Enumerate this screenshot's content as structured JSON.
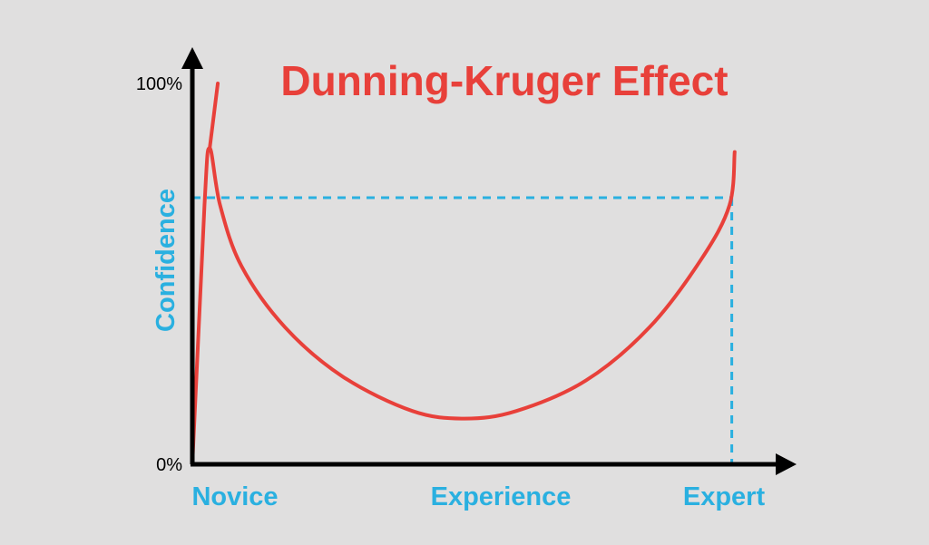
{
  "chart_data": {
    "type": "line",
    "title": "Dunning-Kruger Effect",
    "xlabel": "Experience",
    "ylabel": "Confidence",
    "x_tick_labels": [
      "Novice",
      "Expert"
    ],
    "y_tick_labels": [
      "0%",
      "100%"
    ],
    "xlim": [
      0,
      100
    ],
    "ylim": [
      0,
      100
    ],
    "grid": false,
    "series": [
      {
        "color": "#e8403a",
        "points": [
          [
            0,
            0
          ],
          [
            2.1,
            68
          ],
          [
            3.0,
            83
          ],
          [
            4.8,
            68
          ],
          [
            8.5,
            52
          ],
          [
            16,
            36
          ],
          [
            26,
            23
          ],
          [
            38,
            14
          ],
          [
            47,
            12
          ],
          [
            56,
            14
          ],
          [
            68,
            22
          ],
          [
            79,
            36
          ],
          [
            88,
            54
          ],
          [
            92.8,
            68
          ],
          [
            93.7,
            82
          ]
        ]
      },
      {
        "color": "#e8403a",
        "points": [
          [
            3.0,
            83
          ],
          [
            4.4,
            100
          ]
        ]
      }
    ],
    "reference_lines": {
      "color": "#2ab0e0",
      "style": "dashed",
      "confidence_level": 70,
      "experience_level": 93.2
    },
    "colors": {
      "title": "#e8403a",
      "axis_labels": "#2ab0e0",
      "axes": "#000000",
      "background": "#e0dfdf"
    }
  }
}
